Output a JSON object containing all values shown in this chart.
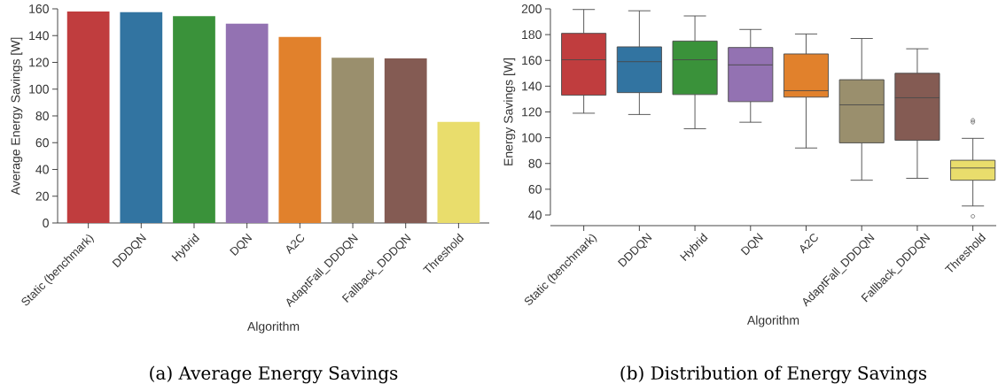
{
  "chart_data": [
    {
      "type": "bar",
      "title": "(a) Average Energy Savings",
      "xlabel": "Algorithm",
      "ylabel": "Average Energy Savings [W]",
      "categories": [
        "Static (benchmark)",
        "DDDQN",
        "Hybrid",
        "DQN",
        "A2C",
        "AdaptFall_DDDQN",
        "Fallback_DDDQN",
        "Threshold"
      ],
      "values": [
        158,
        157.5,
        154.5,
        149,
        139,
        123.5,
        123,
        75.5
      ],
      "colors": [
        "#c03d3e",
        "#3274a1",
        "#3a923a",
        "#9372b2",
        "#e1812c",
        "#9a8f6d",
        "#845b53",
        "#e9dd6c"
      ],
      "ylim": [
        0,
        160
      ],
      "yticks": [
        0,
        20,
        40,
        60,
        80,
        100,
        120,
        140,
        160
      ]
    },
    {
      "type": "box",
      "title": "(b) Distribution of Energy Savings",
      "xlabel": "Algorithm",
      "ylabel": "Energy Savings [W]",
      "categories": [
        "Static (benchmark)",
        "DDDQN",
        "Hybrid",
        "DQN",
        "A2C",
        "AdaptFall_DDDQN",
        "Fallback_DDDQN",
        "Threshold"
      ],
      "boxes": [
        {
          "low": 119,
          "q1": 133,
          "median": 160.5,
          "q3": 181,
          "high": 199.5
        },
        {
          "low": 118,
          "q1": 135,
          "median": 159,
          "q3": 170.5,
          "high": 198.5
        },
        {
          "low": 107,
          "q1": 133.5,
          "median": 160.5,
          "q3": 175,
          "high": 194.5
        },
        {
          "low": 112,
          "q1": 128,
          "median": 156.5,
          "q3": 170,
          "high": 184
        },
        {
          "low": 92,
          "q1": 131.5,
          "median": 136.5,
          "q3": 165,
          "high": 180.5
        },
        {
          "low": 67,
          "q1": 96,
          "median": 125.5,
          "q3": 145,
          "high": 177
        },
        {
          "low": 68.5,
          "q1": 98,
          "median": 131,
          "q3": 150,
          "high": 169
        },
        {
          "low": 47,
          "q1": 67,
          "median": 76.5,
          "q3": 82.5,
          "high": 99.5,
          "outliers": [
            112,
            113.5,
            39
          ]
        }
      ],
      "colors": [
        "#c03d3e",
        "#3274a1",
        "#3a923a",
        "#9372b2",
        "#e1812c",
        "#9a8f6d",
        "#845b53",
        "#e9dd6c"
      ],
      "ylim": [
        40,
        200
      ],
      "yticks": [
        40,
        60,
        80,
        100,
        120,
        140,
        160,
        180,
        200
      ]
    }
  ]
}
